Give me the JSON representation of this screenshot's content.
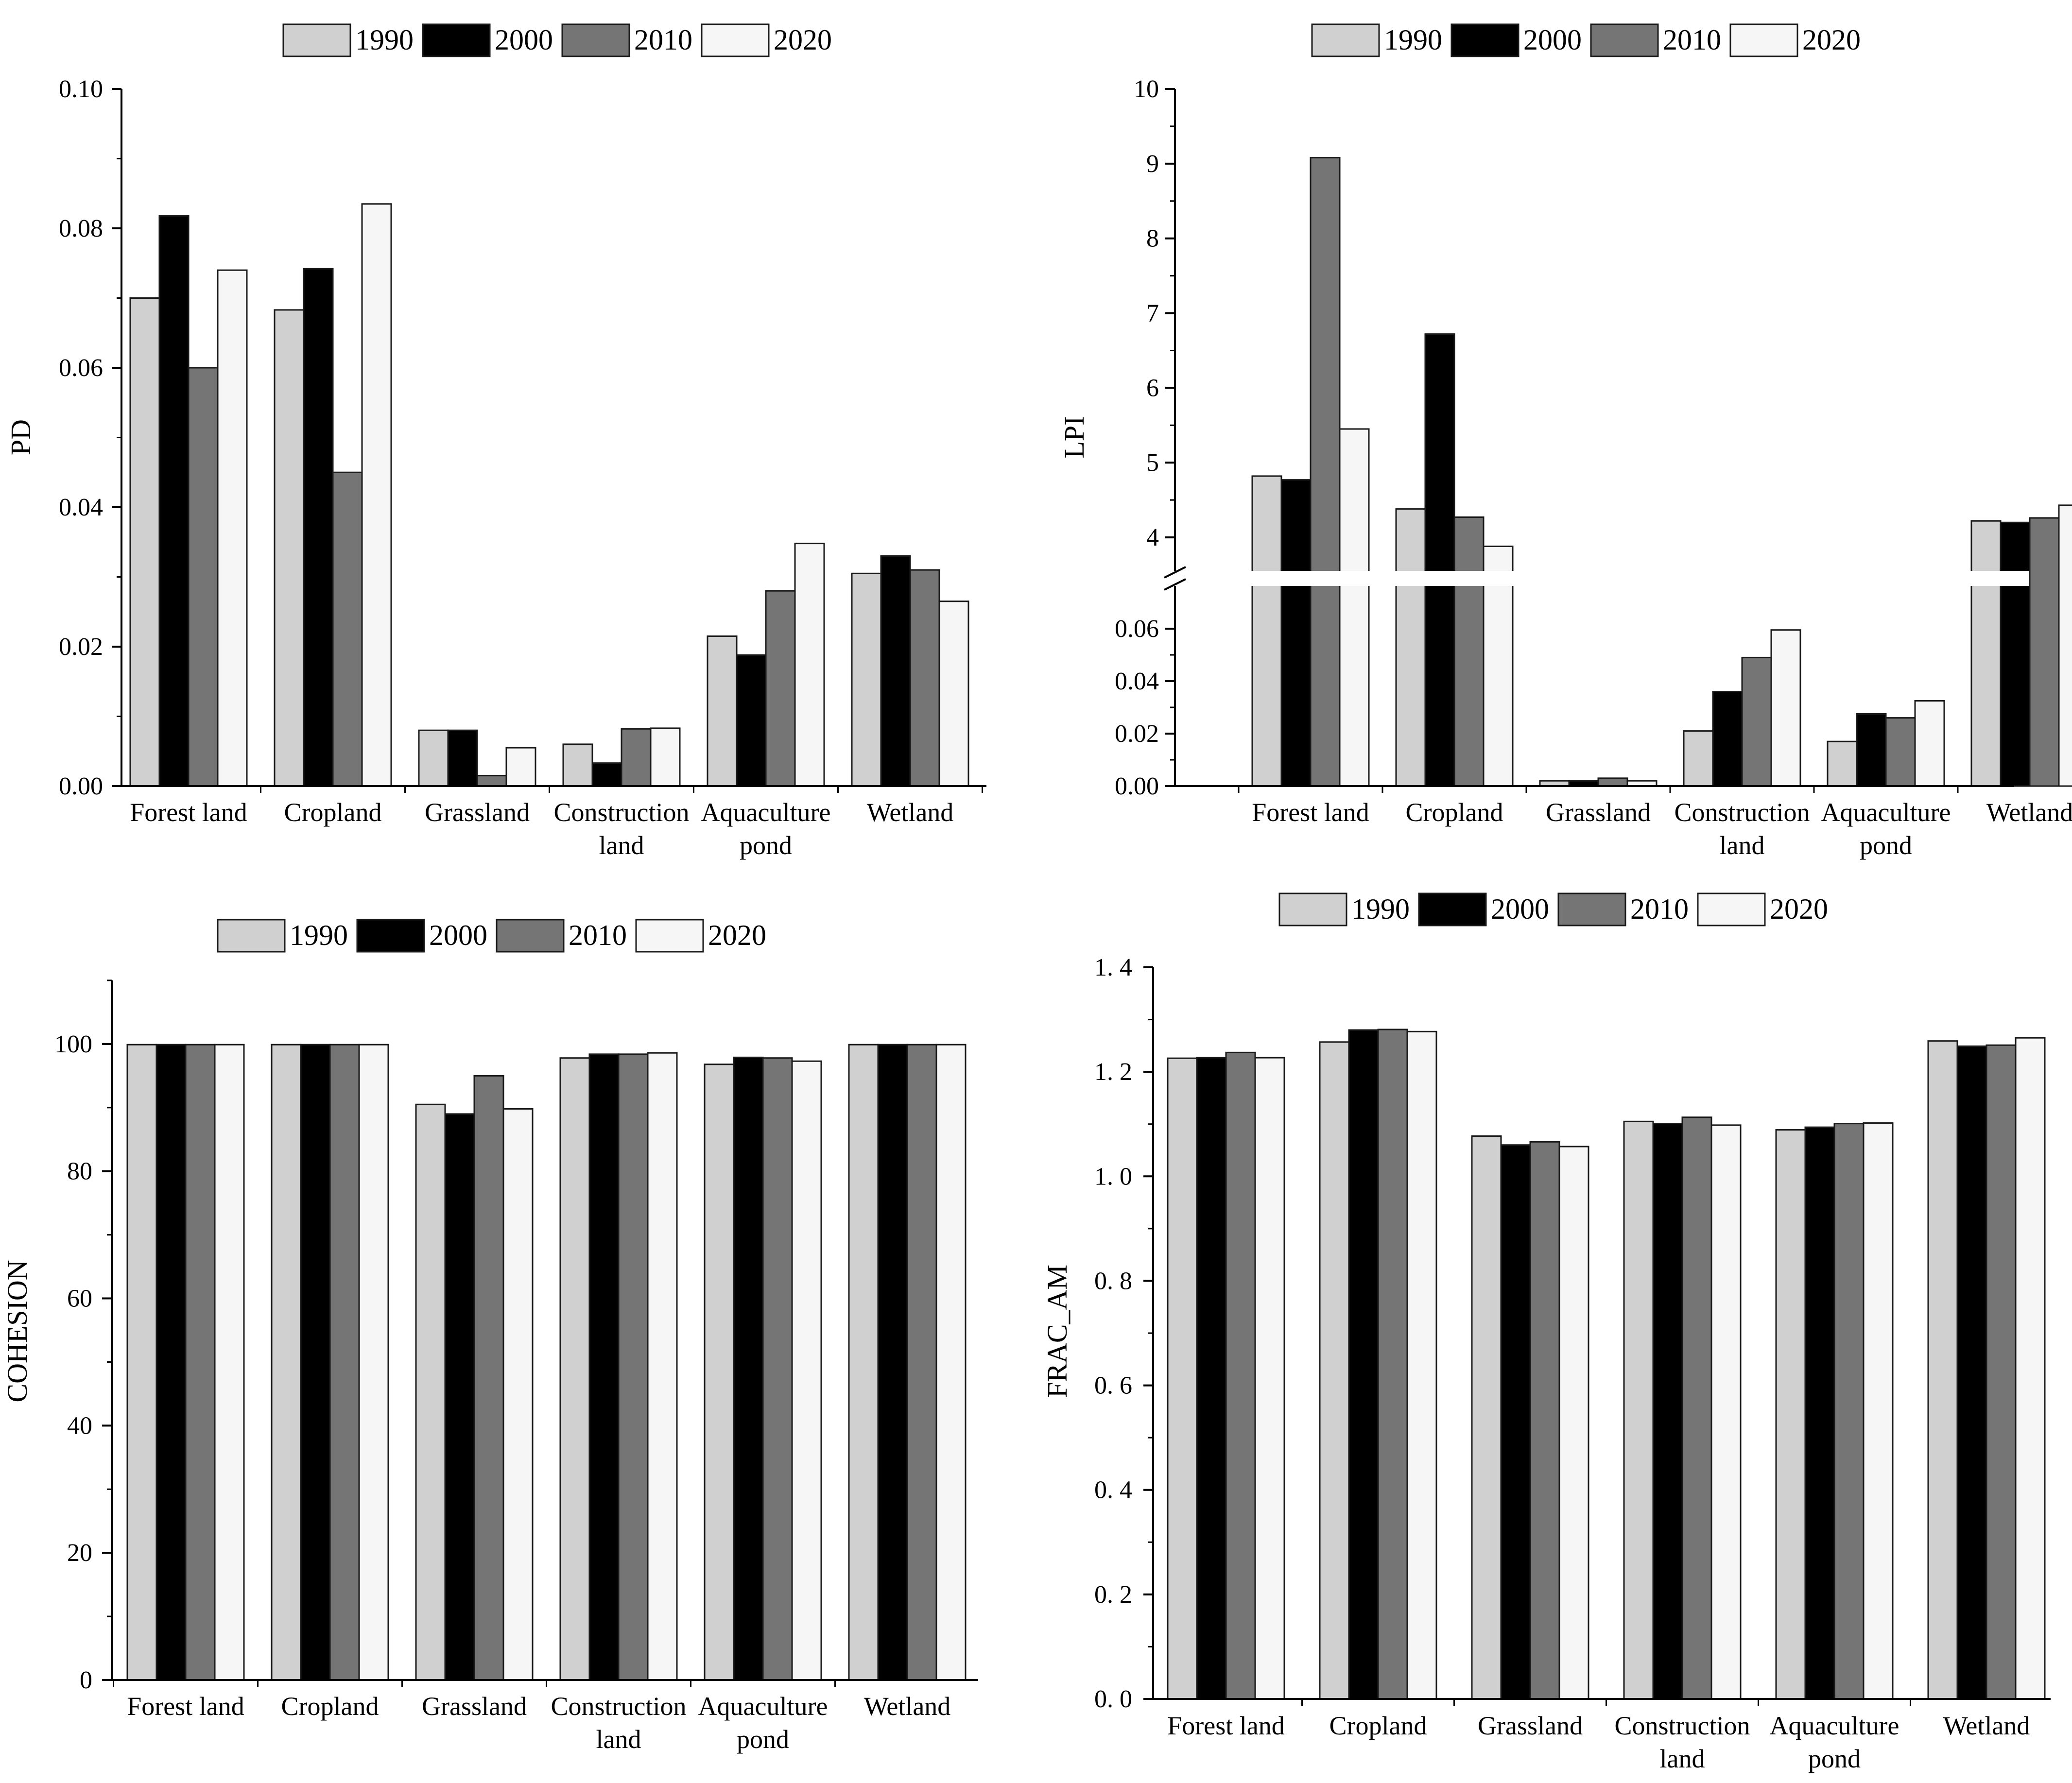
{
  "colors": {
    "1990": "#d0d0d0",
    "2000": "#000000",
    "2010": "#757575",
    "2020": "#f6f6f6",
    "stroke": "#1a1a1a"
  },
  "chart_data": [
    {
      "type": "bar",
      "ylabel": "PD",
      "categories": [
        "Forest land",
        "Cropland",
        "Grassland",
        "Construction\nland",
        "Aquaculture\npond",
        "Wetland"
      ],
      "series": [
        {
          "name": "1990",
          "values": [
            0.07,
            0.0683,
            0.008,
            0.006,
            0.0215,
            0.0305
          ]
        },
        {
          "name": "2000",
          "values": [
            0.0818,
            0.0742,
            0.008,
            0.0033,
            0.0188,
            0.033
          ]
        },
        {
          "name": "2010",
          "values": [
            0.06,
            0.045,
            0.0015,
            0.0082,
            0.028,
            0.031
          ]
        },
        {
          "name": "2020",
          "values": [
            0.074,
            0.0835,
            0.0055,
            0.0083,
            0.0348,
            0.0265
          ]
        }
      ],
      "ylim": [
        0,
        0.1
      ],
      "yticks": [
        "0.00",
        "0.02",
        "0.04",
        "0.06",
        "0.08",
        "0.10"
      ],
      "ytick_values": [
        0,
        0.02,
        0.04,
        0.06,
        0.08,
        0.1
      ],
      "minor_step": 0.01,
      "legend": "top"
    },
    {
      "type": "bar",
      "ylabel": "LPI",
      "broken_axis": true,
      "categories": [
        "Forest land",
        "Cropland",
        "Grassland",
        "Construction\nland",
        "Aquaculture\npond",
        "Wetland"
      ],
      "series": [
        {
          "name": "1990",
          "values": [
            4.82,
            4.38,
            0.002,
            0.021,
            0.017,
            4.22
          ]
        },
        {
          "name": "2000",
          "values": [
            4.77,
            6.72,
            0.002,
            0.036,
            0.0275,
            4.2
          ]
        },
        {
          "name": "2010",
          "values": [
            9.08,
            4.27,
            0.003,
            0.049,
            0.026,
            4.26
          ]
        },
        {
          "name": "2020",
          "values": [
            5.45,
            3.88,
            0.002,
            0.0595,
            0.0325,
            4.43
          ]
        }
      ],
      "lower_ylim": [
        0,
        0.07
      ],
      "upper_ylim": [
        3.5,
        10
      ],
      "lower_yticks": [
        "0.00",
        "0.02",
        "0.04",
        "0.06"
      ],
      "lower_ytick_values": [
        0,
        0.02,
        0.04,
        0.06
      ],
      "upper_yticks": [
        "4",
        "5",
        "6",
        "7",
        "8",
        "9",
        "10"
      ],
      "upper_ytick_values": [
        4,
        5,
        6,
        7,
        8,
        9,
        10
      ],
      "legend": "top"
    },
    {
      "type": "bar",
      "ylabel": "COHESION",
      "categories": [
        "Forest land",
        "Cropland",
        "Grassland",
        "Construction\nland",
        "Aquaculture\npond",
        "Wetland"
      ],
      "series": [
        {
          "name": "1990",
          "values": [
            99.9,
            99.9,
            90.5,
            97.8,
            96.8,
            99.9
          ]
        },
        {
          "name": "2000",
          "values": [
            99.9,
            99.9,
            89.0,
            98.4,
            97.9,
            99.9
          ]
        },
        {
          "name": "2010",
          "values": [
            99.9,
            99.9,
            95.0,
            98.4,
            97.8,
            99.9
          ]
        },
        {
          "name": "2020",
          "values": [
            99.9,
            99.9,
            89.8,
            98.6,
            97.3,
            99.9
          ]
        }
      ],
      "ylim": [
        0,
        110
      ],
      "yticks": [
        "0",
        "20",
        "40",
        "60",
        "80",
        "100"
      ],
      "ytick_values": [
        0,
        20,
        40,
        60,
        80,
        100
      ],
      "minor_step": 10,
      "legend": "top"
    },
    {
      "type": "bar",
      "ylabel": "FRAC_AM",
      "categories": [
        "Forest land",
        "Cropland",
        "Grassland",
        "Construction\nland",
        "Aquaculture\npond",
        "Wetland"
      ],
      "series": [
        {
          "name": "1990",
          "values": [
            1.226,
            1.257,
            1.077,
            1.105,
            1.089,
            1.259
          ]
        },
        {
          "name": "2000",
          "values": [
            1.227,
            1.28,
            1.06,
            1.101,
            1.094,
            1.249
          ]
        },
        {
          "name": "2010",
          "values": [
            1.237,
            1.281,
            1.066,
            1.113,
            1.101,
            1.251
          ]
        },
        {
          "name": "2020",
          "values": [
            1.227,
            1.277,
            1.057,
            1.098,
            1.102,
            1.265
          ]
        }
      ],
      "ylim": [
        0,
        1.4
      ],
      "yticks": [
        "0. 0",
        "0. 2",
        "0. 4",
        "0. 6",
        "0. 8",
        "1. 0",
        "1. 2",
        "1. 4"
      ],
      "ytick_values": [
        0,
        0.2,
        0.4,
        0.6,
        0.8,
        1.0,
        1.2,
        1.4
      ],
      "minor_step": 0.1,
      "legend": "top"
    }
  ]
}
